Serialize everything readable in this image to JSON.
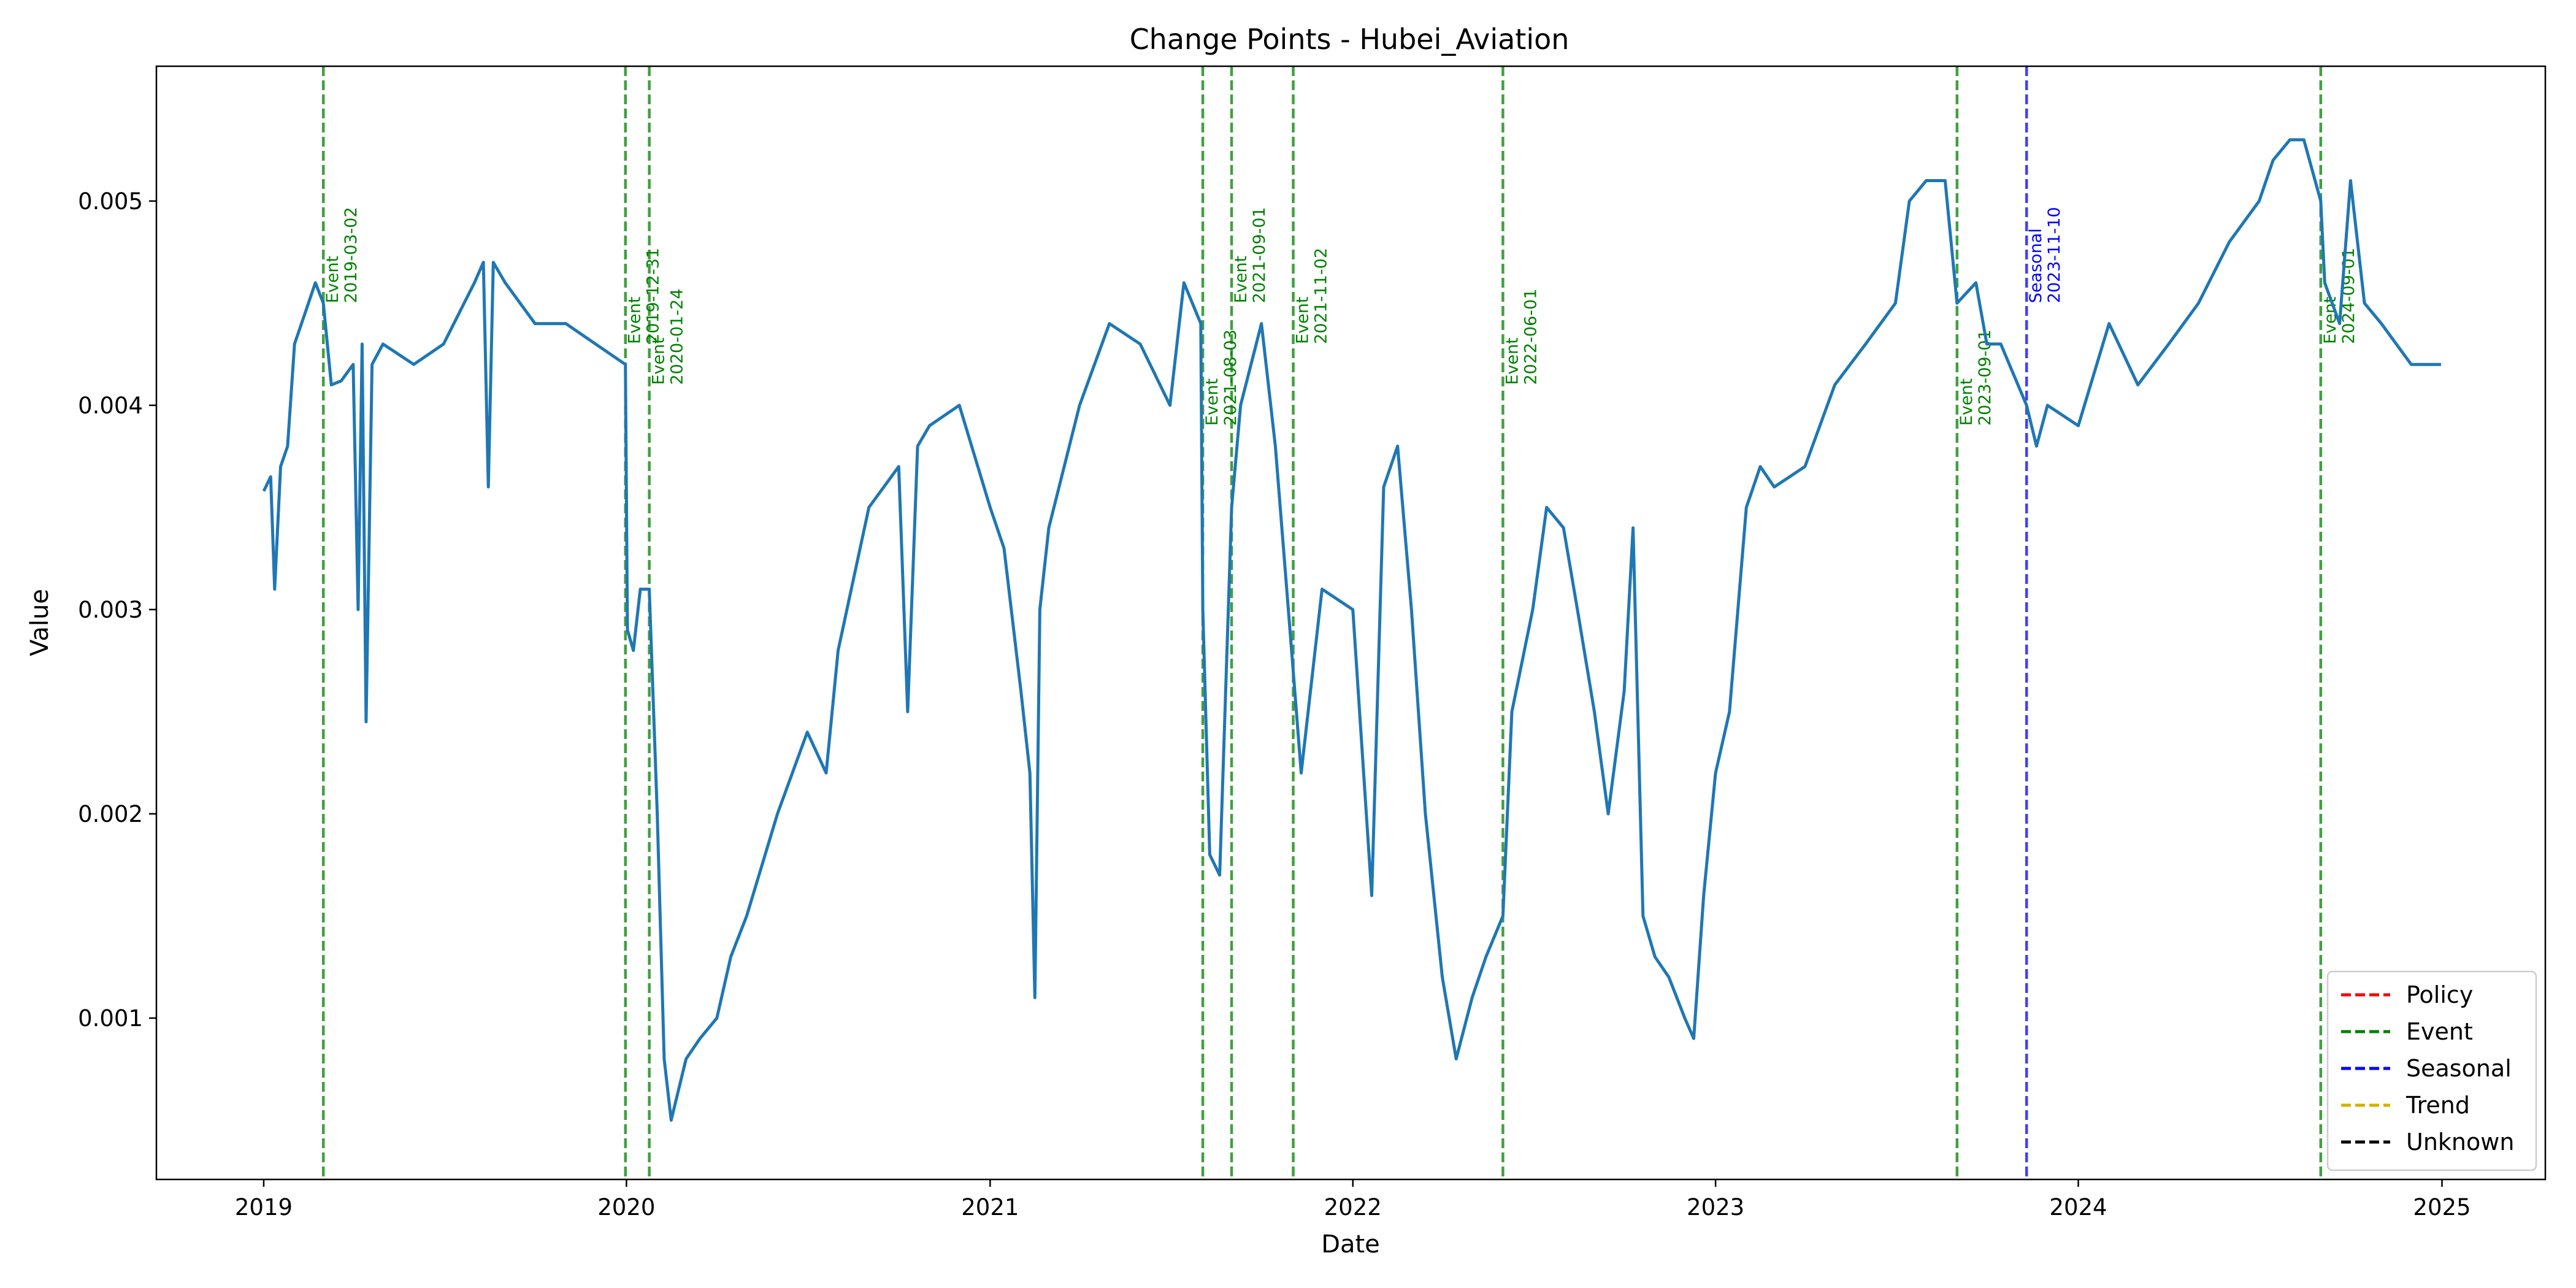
{
  "chart_data": {
    "type": "line",
    "title": "Change Points - Hubei_Aviation",
    "xlabel": "Date",
    "ylabel": "Value",
    "xlim": [
      "2018-09-15",
      "2025-04-15"
    ],
    "ylim": [
      0.00021,
      0.00566
    ],
    "x_ticks": [
      "2019",
      "2020",
      "2021",
      "2022",
      "2023",
      "2024",
      "2025"
    ],
    "y_ticks": [
      "0.001",
      "0.002",
      "0.003",
      "0.004",
      "0.005"
    ],
    "y_tick_values": [
      0.001,
      0.002,
      0.003,
      0.004,
      0.005
    ],
    "series": [
      {
        "name": "Hubei_Aviation",
        "color": "#1f77b4",
        "points": [
          [
            "2019-01-01",
            0.00358
          ],
          [
            "2019-01-08",
            0.00365
          ],
          [
            "2019-01-12",
            0.0031
          ],
          [
            "2019-01-18",
            0.0037
          ],
          [
            "2019-01-25",
            0.0038
          ],
          [
            "2019-02-01",
            0.0043
          ],
          [
            "2019-02-08",
            0.0044
          ],
          [
            "2019-02-15",
            0.0045
          ],
          [
            "2019-02-22",
            0.0046
          ],
          [
            "2019-03-02",
            0.0045
          ],
          [
            "2019-03-10",
            0.0041
          ],
          [
            "2019-03-20",
            0.00412
          ],
          [
            "2019-04-01",
            0.0042
          ],
          [
            "2019-04-06",
            0.003
          ],
          [
            "2019-04-10",
            0.0043
          ],
          [
            "2019-04-14",
            0.00245
          ],
          [
            "2019-04-20",
            0.0042
          ],
          [
            "2019-05-01",
            0.0043
          ],
          [
            "2019-06-01",
            0.0042
          ],
          [
            "2019-07-01",
            0.0043
          ],
          [
            "2019-08-01",
            0.0046
          ],
          [
            "2019-08-10",
            0.0047
          ],
          [
            "2019-08-15",
            0.0036
          ],
          [
            "2019-08-20",
            0.0047
          ],
          [
            "2019-09-01",
            0.0046
          ],
          [
            "2019-10-01",
            0.0044
          ],
          [
            "2019-11-01",
            0.0044
          ],
          [
            "2019-12-01",
            0.0043
          ],
          [
            "2019-12-31",
            0.0042
          ],
          [
            "2020-01-02",
            0.0029
          ],
          [
            "2020-01-08",
            0.0028
          ],
          [
            "2020-01-15",
            0.0031
          ],
          [
            "2020-01-24",
            0.0031
          ],
          [
            "2020-02-01",
            0.002
          ],
          [
            "2020-02-08",
            0.0008
          ],
          [
            "2020-02-15",
            0.0005
          ],
          [
            "2020-03-01",
            0.0008
          ],
          [
            "2020-03-15",
            0.0009
          ],
          [
            "2020-04-01",
            0.001
          ],
          [
            "2020-04-15",
            0.0013
          ],
          [
            "2020-05-01",
            0.0015
          ],
          [
            "2020-06-01",
            0.002
          ],
          [
            "2020-07-01",
            0.0024
          ],
          [
            "2020-07-20",
            0.0022
          ],
          [
            "2020-08-01",
            0.0028
          ],
          [
            "2020-09-01",
            0.0035
          ],
          [
            "2020-10-01",
            0.0037
          ],
          [
            "2020-10-10",
            0.0025
          ],
          [
            "2020-10-20",
            0.0038
          ],
          [
            "2020-11-01",
            0.0039
          ],
          [
            "2020-12-01",
            0.004
          ],
          [
            "2021-01-01",
            0.0035
          ],
          [
            "2021-01-15",
            0.0033
          ],
          [
            "2021-02-01",
            0.0026
          ],
          [
            "2021-02-10",
            0.0022
          ],
          [
            "2021-02-15",
            0.0011
          ],
          [
            "2021-02-20",
            0.003
          ],
          [
            "2021-03-01",
            0.0034
          ],
          [
            "2021-04-01",
            0.004
          ],
          [
            "2021-05-01",
            0.0044
          ],
          [
            "2021-06-01",
            0.0043
          ],
          [
            "2021-07-01",
            0.004
          ],
          [
            "2021-07-15",
            0.0046
          ],
          [
            "2021-08-01",
            0.0044
          ],
          [
            "2021-08-03",
            0.003
          ],
          [
            "2021-08-10",
            0.0018
          ],
          [
            "2021-08-20",
            0.0017
          ],
          [
            "2021-09-01",
            0.0035
          ],
          [
            "2021-09-10",
            0.004
          ],
          [
            "2021-10-01",
            0.0044
          ],
          [
            "2021-10-15",
            0.0038
          ],
          [
            "2021-11-02",
            0.0027
          ],
          [
            "2021-11-10",
            0.0022
          ],
          [
            "2021-12-01",
            0.0031
          ],
          [
            "2022-01-01",
            0.003
          ],
          [
            "2022-01-20",
            0.0016
          ],
          [
            "2022-02-01",
            0.0036
          ],
          [
            "2022-02-15",
            0.0038
          ],
          [
            "2022-03-01",
            0.003
          ],
          [
            "2022-03-15",
            0.002
          ],
          [
            "2022-04-01",
            0.0012
          ],
          [
            "2022-04-15",
            0.0008
          ],
          [
            "2022-05-01",
            0.0011
          ],
          [
            "2022-05-15",
            0.0013
          ],
          [
            "2022-06-01",
            0.0015
          ],
          [
            "2022-06-10",
            0.0025
          ],
          [
            "2022-07-01",
            0.003
          ],
          [
            "2022-07-15",
            0.0035
          ],
          [
            "2022-08-01",
            0.0034
          ],
          [
            "2022-08-15",
            0.003
          ],
          [
            "2022-09-01",
            0.0025
          ],
          [
            "2022-09-15",
            0.002
          ],
          [
            "2022-10-01",
            0.0026
          ],
          [
            "2022-10-10",
            0.0034
          ],
          [
            "2022-10-20",
            0.0015
          ],
          [
            "2022-11-01",
            0.0013
          ],
          [
            "2022-11-15",
            0.0012
          ],
          [
            "2022-12-01",
            0.001
          ],
          [
            "2022-12-10",
            0.0009
          ],
          [
            "2022-12-20",
            0.0016
          ],
          [
            "2023-01-01",
            0.0022
          ],
          [
            "2023-01-15",
            0.0025
          ],
          [
            "2023-02-01",
            0.0035
          ],
          [
            "2023-02-15",
            0.0037
          ],
          [
            "2023-03-01",
            0.0036
          ],
          [
            "2023-04-01",
            0.0037
          ],
          [
            "2023-05-01",
            0.0041
          ],
          [
            "2023-06-01",
            0.0043
          ],
          [
            "2023-07-01",
            0.0045
          ],
          [
            "2023-07-15",
            0.005
          ],
          [
            "2023-08-01",
            0.0051
          ],
          [
            "2023-08-20",
            0.0051
          ],
          [
            "2023-09-01",
            0.0045
          ],
          [
            "2023-09-20",
            0.0046
          ],
          [
            "2023-10-01",
            0.0043
          ],
          [
            "2023-10-15",
            0.0043
          ],
          [
            "2023-11-10",
            0.004
          ],
          [
            "2023-11-20",
            0.0038
          ],
          [
            "2023-12-01",
            0.004
          ],
          [
            "2024-01-01",
            0.0039
          ],
          [
            "2024-02-01",
            0.0044
          ],
          [
            "2024-03-01",
            0.0041
          ],
          [
            "2024-04-01",
            0.0043
          ],
          [
            "2024-05-01",
            0.0045
          ],
          [
            "2024-06-01",
            0.0048
          ],
          [
            "2024-07-01",
            0.005
          ],
          [
            "2024-07-15",
            0.0052
          ],
          [
            "2024-08-01",
            0.0053
          ],
          [
            "2024-08-15",
            0.0053
          ],
          [
            "2024-09-01",
            0.005
          ],
          [
            "2024-09-05",
            0.0046
          ],
          [
            "2024-09-20",
            0.0044
          ],
          [
            "2024-10-01",
            0.0051
          ],
          [
            "2024-10-15",
            0.0045
          ],
          [
            "2024-11-01",
            0.0044
          ],
          [
            "2024-12-01",
            0.0042
          ],
          [
            "2024-12-31",
            0.0042
          ]
        ]
      }
    ],
    "change_points": [
      {
        "date": "2019-03-02",
        "type": "Event",
        "label": "Event"
      },
      {
        "date": "2019-12-31",
        "type": "Event",
        "label": "Event"
      },
      {
        "date": "2020-01-24",
        "type": "Event",
        "label": "Event"
      },
      {
        "date": "2021-08-03",
        "type": "Event",
        "label": "Event"
      },
      {
        "date": "2021-09-01",
        "type": "Event",
        "label": "Event"
      },
      {
        "date": "2021-11-02",
        "type": "Event",
        "label": "Event"
      },
      {
        "date": "2022-06-01",
        "type": "Event",
        "label": "Event"
      },
      {
        "date": "2023-09-01",
        "type": "Event",
        "label": "Event"
      },
      {
        "date": "2023-11-10",
        "type": "Seasonal",
        "label": "Seasonal"
      },
      {
        "date": "2024-09-01",
        "type": "Event",
        "label": "Event"
      }
    ],
    "legend": {
      "position": "lower-right",
      "entries": [
        {
          "label": "Policy",
          "color": "#ff0000"
        },
        {
          "label": "Event",
          "color": "#008000"
        },
        {
          "label": "Seasonal",
          "color": "#0000ff"
        },
        {
          "label": "Trend",
          "color": "#d4b000"
        },
        {
          "label": "Unknown",
          "color": "#000000"
        }
      ]
    },
    "type_colors": {
      "Policy": "#ff0000",
      "Event": "#008000",
      "Seasonal": "#0000ff",
      "Trend": "#d4b000",
      "Unknown": "#000000"
    }
  }
}
